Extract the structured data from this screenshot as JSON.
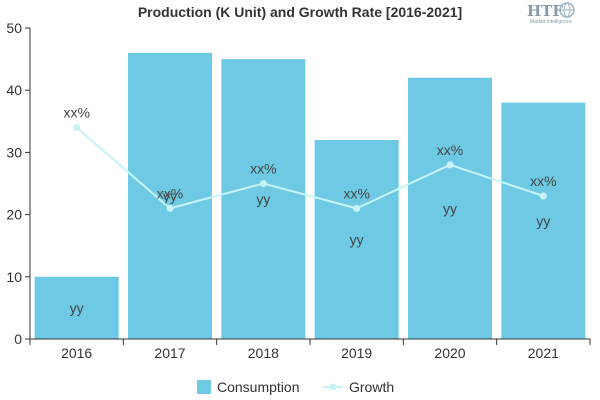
{
  "chart_data": {
    "type": "bar",
    "title": "Production (K Unit) and Growth Rate [2016-2021]",
    "categories": [
      "2016",
      "2017",
      "2018",
      "2019",
      "2020",
      "2021"
    ],
    "ylim": [
      0,
      50
    ],
    "yticks": [
      "0",
      "10",
      "20",
      "30",
      "40",
      "50"
    ],
    "grid": false,
    "legend_position": "bottom",
    "series": [
      {
        "name": "Consumption",
        "type": "bar",
        "values": [
          10,
          46,
          45,
          32,
          42,
          38
        ],
        "labels": [
          "yy",
          "yy",
          "yy",
          "yy",
          "yy",
          "yy"
        ],
        "color": "#6ecae4"
      },
      {
        "name": "Growth",
        "type": "line",
        "values": [
          34,
          21,
          25,
          21,
          28,
          23
        ],
        "labels": [
          "xx%",
          "xx%",
          "xx%",
          "xx%",
          "xx%",
          "xx%"
        ],
        "color": "#c6f3f6"
      }
    ]
  },
  "logo": {
    "text": "HTF",
    "subtitle": "Market Intelligence"
  }
}
